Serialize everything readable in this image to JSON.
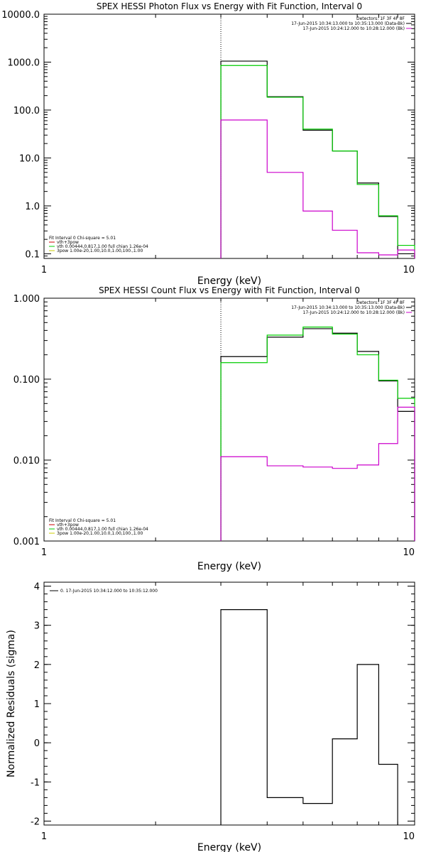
{
  "chart_data": [
    {
      "type": "line",
      "title": "SPEX HESSI Photon Flux vs Energy with Fit Function, Interval 0",
      "xlabel": "Energy (keV)",
      "ylabel": "",
      "xscale": "log",
      "yscale": "log",
      "xlim": [
        1,
        10
      ],
      "ylim": [
        0.08,
        10000
      ],
      "x_ticks": [
        {
          "v": 1,
          "label": "1"
        },
        {
          "v": 10,
          "label": "10"
        }
      ],
      "y_ticks": [
        {
          "v": 0.1,
          "label": "0.1"
        },
        {
          "v": 1,
          "label": "1.0"
        },
        {
          "v": 10,
          "label": "10.0"
        },
        {
          "v": 100,
          "label": "100.0"
        },
        {
          "v": 1000,
          "label": "1000.0"
        },
        {
          "v": 10000,
          "label": "10000.0"
        }
      ],
      "vline_x": 3.0,
      "bin_edges": [
        3.0,
        4.0,
        5.0,
        6.0,
        7.0,
        8.0,
        9.0,
        10.0
      ],
      "series": [
        {
          "color": "#000000",
          "values": [
            1050,
            190,
            38,
            14,
            3.0,
            0.6,
            0.1
          ]
        },
        {
          "color": "#00cc00",
          "values": [
            850,
            185,
            40,
            14,
            2.8,
            0.62,
            0.15
          ]
        },
        {
          "color": "#cc00cc",
          "values": [
            62,
            5.0,
            0.78,
            0.31,
            0.105,
            0.095,
            0.12
          ]
        }
      ],
      "legend_top": {
        "placement": "top-right",
        "header": "Detectors: 1F 3F 4F 8F",
        "entries": [
          {
            "label": "17-Jun-2015 10:34:13.000 to 10:35:13.000 (Data-Bk)",
            "color": "#000000"
          },
          {
            "label": "17-Jun-2015 10:24:12.000 to 10:28:12.000 (Bk)",
            "color": "#cc00cc"
          }
        ]
      },
      "legend_bottom": {
        "placement": "bottom-left",
        "header": "Fit Interval 0   Chi-square = 5.01",
        "entries": [
          {
            "label": "vth+3pow",
            "color": "#cc0000"
          },
          {
            "label": "vth 0.00444,0.817,1.00  full chian 1.26e-04",
            "color": "#00cc00"
          },
          {
            "label": "3pow 1.00e-20,1.00,10.0,1.00,100.,1.00",
            "color": "#cccc00"
          }
        ]
      }
    },
    {
      "type": "line",
      "title": "SPEX HESSI Count Flux vs Energy with Fit Function, Interval 0",
      "xlabel": "Energy (keV)",
      "ylabel": "",
      "xscale": "log",
      "yscale": "log",
      "xlim": [
        1,
        10
      ],
      "ylim": [
        0.001,
        1.0
      ],
      "x_ticks": [
        {
          "v": 1,
          "label": "1"
        },
        {
          "v": 10,
          "label": "10"
        }
      ],
      "y_ticks": [
        {
          "v": 0.001,
          "label": "0.001"
        },
        {
          "v": 0.01,
          "label": "0.010"
        },
        {
          "v": 0.1,
          "label": "0.100"
        },
        {
          "v": 1.0,
          "label": "1.000"
        }
      ],
      "vline_x": 3.0,
      "bin_edges": [
        3.0,
        4.0,
        5.0,
        6.0,
        7.0,
        8.0,
        9.0,
        10.0
      ],
      "series": [
        {
          "color": "#000000",
          "values": [
            0.19,
            0.33,
            0.42,
            0.37,
            0.22,
            0.095,
            0.04
          ]
        },
        {
          "color": "#00cc00",
          "values": [
            0.16,
            0.35,
            0.44,
            0.36,
            0.2,
            0.097,
            0.058
          ]
        },
        {
          "color": "#cc00cc",
          "values": [
            0.011,
            0.0085,
            0.0082,
            0.0079,
            0.0087,
            0.016,
            0.045
          ]
        }
      ],
      "legend_top": {
        "placement": "top-right",
        "header": "Detectors: 1F 3F 4F 8F",
        "entries": [
          {
            "label": "17-Jun-2015 10:34:13.000 to 10:35:13.000 (Data-Bk)",
            "color": "#000000"
          },
          {
            "label": "17-Jun-2015 10:24:12.000 to 10:28:12.000 (Bk)",
            "color": "#cc00cc"
          }
        ]
      },
      "legend_bottom": {
        "placement": "bottom-left",
        "header": "Fit Interval 0   Chi-square = 5.01",
        "entries": [
          {
            "label": "vth+3pow",
            "color": "#cc0000"
          },
          {
            "label": "vth 0.00444,0.817,1.00  full chian 1.26e-04",
            "color": "#00cc00"
          },
          {
            "label": "3pow 1.00e-20,1.00,10.0,1.00,100.,1.00",
            "color": "#cccc00"
          }
        ]
      }
    },
    {
      "type": "line",
      "title": "",
      "xlabel": "Energy (keV)",
      "ylabel": "Normalized Residuals (sigma)",
      "xscale": "log",
      "yscale": "linear",
      "xlim": [
        1,
        10
      ],
      "ylim": [
        -2.1,
        4.1
      ],
      "x_ticks": [
        {
          "v": 1,
          "label": "1"
        },
        {
          "v": 10,
          "label": "10"
        }
      ],
      "y_ticks": [
        {
          "v": -2,
          "label": "-2"
        },
        {
          "v": -1,
          "label": "-1"
        },
        {
          "v": 0,
          "label": "0"
        },
        {
          "v": 1,
          "label": "1"
        },
        {
          "v": 2,
          "label": "2"
        },
        {
          "v": 3,
          "label": "3"
        },
        {
          "v": 4,
          "label": "4"
        }
      ],
      "bin_edges": [
        3.0,
        4.0,
        5.0,
        6.0,
        7.0,
        8.0,
        9.0
      ],
      "series": [
        {
          "color": "#000000",
          "values": [
            3.4,
            -1.4,
            -1.55,
            0.1,
            2.0,
            -0.55
          ]
        }
      ],
      "legend_top": {
        "placement": "top-left",
        "header": "",
        "entries": [
          {
            "label": "0. 17-Jun-2015 10:34:12.000 to 10:35:12.000",
            "color": "#000000"
          }
        ]
      }
    }
  ]
}
